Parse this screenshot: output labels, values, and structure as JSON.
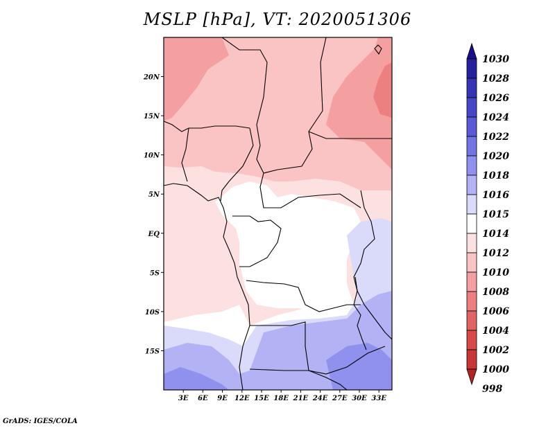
{
  "title": "MSLP [hPa], VT: 2020051306",
  "credit": "GrADS: IGES/COLA",
  "map": {
    "variable": "Mean sea level pressure",
    "units": "hPa",
    "lon_range": [
      0,
      35
    ],
    "lat_range": [
      -20,
      25
    ],
    "lon_ticks": [
      {
        "value": 3,
        "label": "3E"
      },
      {
        "value": 6,
        "label": "6E"
      },
      {
        "value": 9,
        "label": "9E"
      },
      {
        "value": 12,
        "label": "12E"
      },
      {
        "value": 15,
        "label": "15E"
      },
      {
        "value": 18,
        "label": "18E"
      },
      {
        "value": 21,
        "label": "21E"
      },
      {
        "value": 24,
        "label": "24E"
      },
      {
        "value": 27,
        "label": "27E"
      },
      {
        "value": 30,
        "label": "30E"
      },
      {
        "value": 33,
        "label": "33E"
      }
    ],
    "lat_ticks": [
      {
        "value": 20,
        "label": "20N"
      },
      {
        "value": 15,
        "label": "15N"
      },
      {
        "value": 10,
        "label": "10N"
      },
      {
        "value": 5,
        "label": "5N"
      },
      {
        "value": 0,
        "label": "EQ"
      },
      {
        "value": -5,
        "label": "5S"
      },
      {
        "value": -10,
        "label": "10S"
      },
      {
        "value": -15,
        "label": "15S"
      }
    ]
  },
  "colorbar": {
    "levels": [
      {
        "label": "1030",
        "color": "#1a0f8a"
      },
      {
        "label": "1028",
        "color": "#25209e"
      },
      {
        "label": "1026",
        "color": "#3434b4"
      },
      {
        "label": "1024",
        "color": "#4646c8"
      },
      {
        "label": "1022",
        "color": "#5a5ad8"
      },
      {
        "label": "1020",
        "color": "#7373e4"
      },
      {
        "label": "1018",
        "color": "#9090ee"
      },
      {
        "label": "1016",
        "color": "#b2b2f4"
      },
      {
        "label": "1015",
        "color": "#dadafa"
      },
      {
        "label": "1014",
        "color": "#ffffff"
      },
      {
        "label": "1012",
        "color": "#fde0e0"
      },
      {
        "label": "1010",
        "color": "#fbc4c4"
      },
      {
        "label": "1008",
        "color": "#f4a0a0"
      },
      {
        "label": "1006",
        "color": "#ec8080"
      },
      {
        "label": "1004",
        "color": "#e06464"
      },
      {
        "label": "1002",
        "color": "#d84a4a"
      },
      {
        "label": "1000",
        "color": "#c83636"
      },
      {
        "label": "998",
        "color": "#b22424"
      }
    ]
  }
}
